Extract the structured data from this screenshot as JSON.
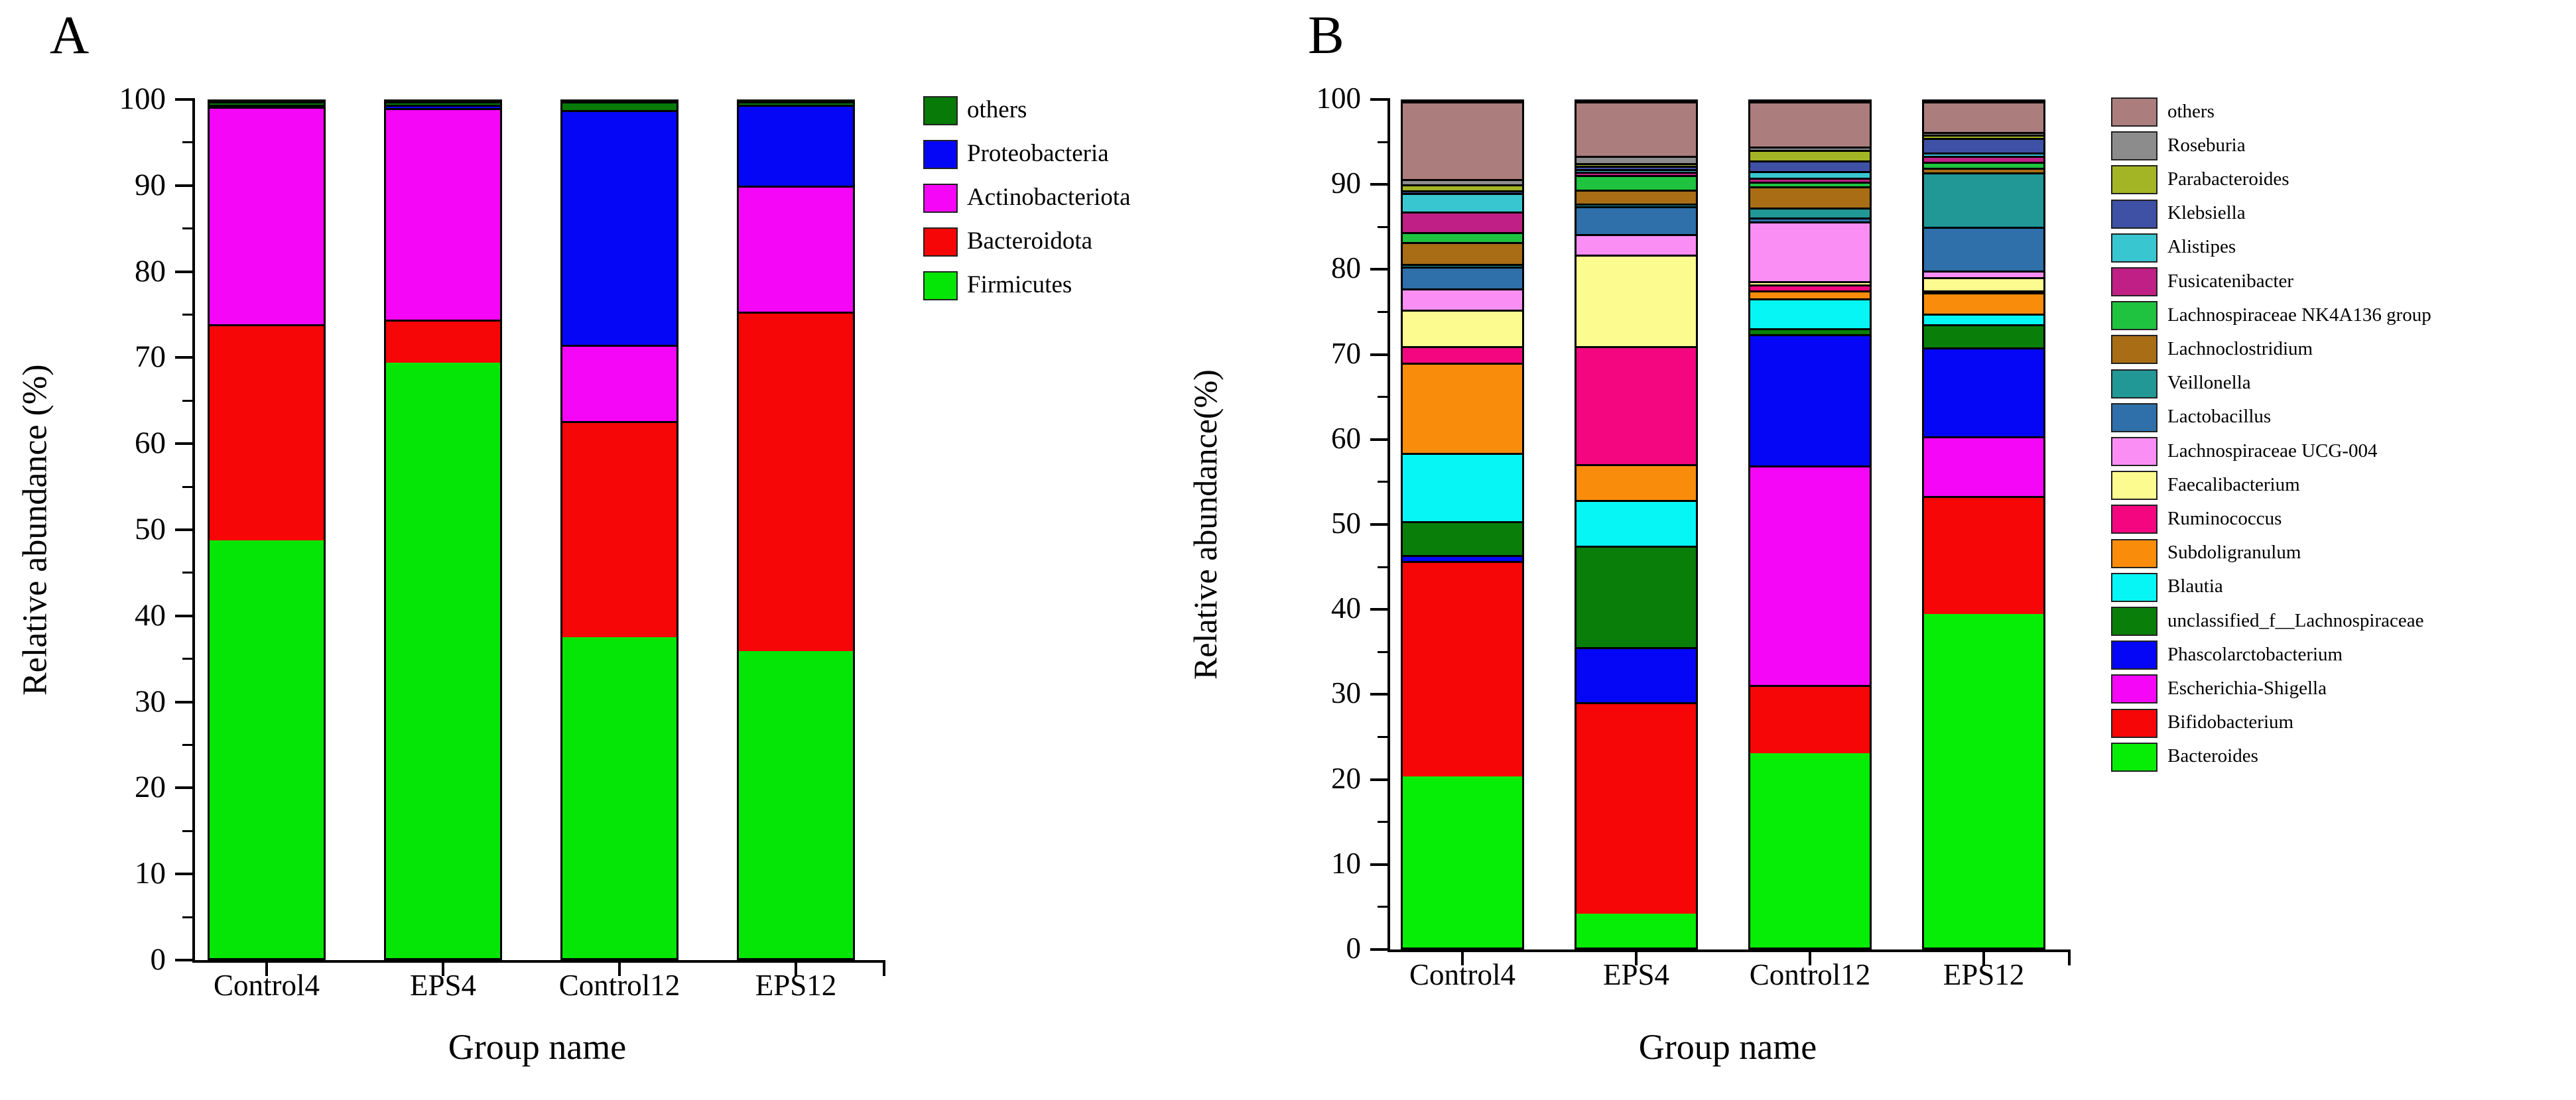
{
  "figure": {
    "background": "#ffffff"
  },
  "panels": [
    {
      "panel_label": "A",
      "y_axis_label": "Relative abundance (%)",
      "x_axis_label": "Group name",
      "y_ticks": [
        0,
        10,
        20,
        30,
        40,
        50,
        60,
        70,
        80,
        90,
        100
      ],
      "categories": [
        "Control4",
        "EPS4",
        "Control12",
        "EPS12"
      ],
      "chart_data": {
        "type": "bar",
        "stacked": true,
        "ylim": [
          0,
          100
        ],
        "ylabel": "Relative abundance (%)",
        "xlabel": "Group name",
        "legend_position": "right-top",
        "categories": [
          "Control4",
          "EPS4",
          "Control12",
          "EPS12"
        ],
        "series": [
          {
            "name": "others",
            "color": "#077A07",
            "values": [
              0.4,
              0.4,
              1.0,
              0.4
            ]
          },
          {
            "name": "Proteobacteria",
            "color": "#0606F6",
            "values": [
              0.2,
              0.4,
              27.4,
              9.4
            ]
          },
          {
            "name": "Actinobacteriota",
            "color": "#F606F6",
            "values": [
              25.4,
              24.7,
              8.9,
              14.7
            ]
          },
          {
            "name": "Bacteroidota",
            "color": "#F60606",
            "values": [
              25.2,
              5.0,
              25.2,
              39.7
            ]
          },
          {
            "name": "Firmicutes",
            "color": "#06E606",
            "values": [
              48.8,
              69.5,
              37.5,
              35.8
            ]
          }
        ]
      }
    },
    {
      "panel_label": "B",
      "y_axis_label": "Relative abundance(%)",
      "x_axis_label": "Group name",
      "y_ticks": [
        0,
        10,
        20,
        30,
        40,
        50,
        60,
        70,
        80,
        90,
        100
      ],
      "categories": [
        "Control4",
        "EPS4",
        "Control12",
        "EPS12"
      ],
      "chart_data": {
        "type": "bar",
        "stacked": true,
        "ylim": [
          0,
          100
        ],
        "ylabel": "Relative abundance(%)",
        "xlabel": "Group name",
        "legend_position": "right",
        "categories": [
          "Control4",
          "EPS4",
          "Control12",
          "EPS12"
        ],
        "series": [
          {
            "name": "others",
            "color": "#AC7D7D",
            "values": [
              9.2,
              6.4,
              5.3,
              3.6
            ]
          },
          {
            "name": "Roseburia",
            "color": "#8C8C8C",
            "values": [
              0.6,
              0.9,
              0.4,
              0.3
            ]
          },
          {
            "name": "Parabacteroides",
            "color": "#A3B524",
            "values": [
              0.7,
              0.3,
              1.3,
              0.4
            ]
          },
          {
            "name": "Klebsiella",
            "color": "#3E51A5",
            "values": [
              0.3,
              0.4,
              1.2,
              1.7
            ]
          },
          {
            "name": "Alistipes",
            "color": "#38C6D0",
            "values": [
              2.2,
              0.3,
              0.8,
              0.4
            ]
          },
          {
            "name": "Fusicatenibacter",
            "color": "#C02085",
            "values": [
              2.4,
              0.4,
              0.5,
              0.7
            ]
          },
          {
            "name": "Lachnospiraceae NK4A136 group",
            "color": "#1FC340",
            "values": [
              1.2,
              1.7,
              0.5,
              0.7
            ]
          },
          {
            "name": "Lachnoclostridium",
            "color": "#A86D15",
            "values": [
              2.6,
              1.7,
              2.5,
              0.6
            ]
          },
          {
            "name": "Veillonella",
            "color": "#219896",
            "values": [
              0.3,
              0.3,
              1.2,
              6.4
            ]
          },
          {
            "name": "Lactobacillus",
            "color": "#2F6FAA",
            "values": [
              2.6,
              3.3,
              0.5,
              5.2
            ]
          },
          {
            "name": "Lachnospiraceae UCG-004",
            "color": "#FA8EF5",
            "values": [
              2.5,
              2.4,
              7.0,
              0.8
            ]
          },
          {
            "name": "Faecalibacterium",
            "color": "#FBFB90",
            "values": [
              4.3,
              10.8,
              0.4,
              1.5
            ]
          },
          {
            "name": "Ruminococcus",
            "color": "#F40680",
            "values": [
              2.0,
              14.0,
              0.7,
              0.3
            ]
          },
          {
            "name": "Subdoligranulum",
            "color": "#FA8C0C",
            "values": [
              10.6,
              4.2,
              1.0,
              2.5
            ]
          },
          {
            "name": "Blautia",
            "color": "#06F6F6",
            "values": [
              8.1,
              5.4,
              3.5,
              1.2
            ]
          },
          {
            "name": "unclassified_f__Lachnospiraceae",
            "color": "#097F09",
            "values": [
              4.0,
              12.0,
              0.7,
              2.8
            ]
          },
          {
            "name": "Phascolarctobacterium",
            "color": "#0606F6",
            "values": [
              0.7,
              6.5,
              15.5,
              10.5
            ]
          },
          {
            "name": "Escherichia-Shigella",
            "color": "#F606F6",
            "values": [
              0.0,
              0.0,
              26.0,
              7.0
            ]
          },
          {
            "name": "Bifidobacterium",
            "color": "#F60606",
            "values": [
              25.5,
              25.0,
              8.0,
              14.0
            ]
          },
          {
            "name": "Bacteroides",
            "color": "#06EE06",
            "values": [
              20.2,
              4.0,
              23.0,
              39.4
            ]
          }
        ]
      }
    }
  ]
}
